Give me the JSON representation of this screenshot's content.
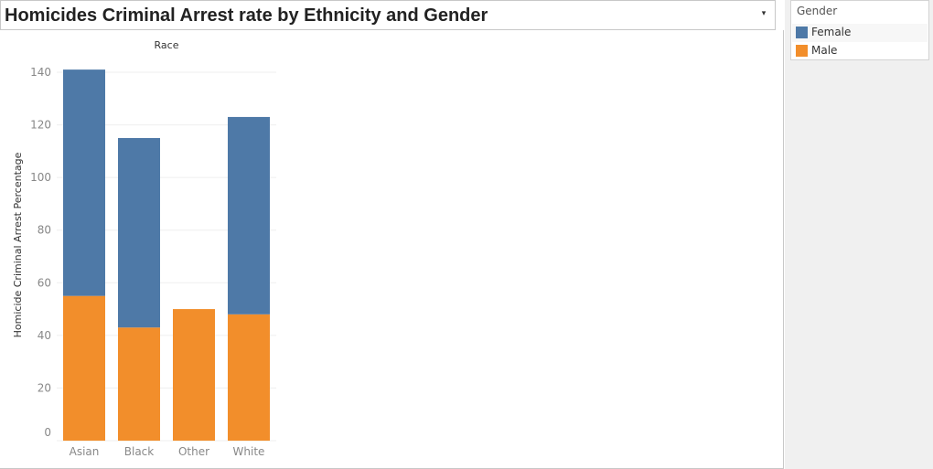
{
  "title": "Homicides Criminal Arrest rate by Ethnicity and Gender",
  "title_dropdown_icon": "▾",
  "legend": {
    "title": "Gender",
    "items": [
      {
        "label": "Female",
        "color": "#4e79a7"
      },
      {
        "label": "Male",
        "color": "#f28e2b"
      }
    ]
  },
  "chart_data": {
    "type": "bar",
    "stacked": true,
    "title": "",
    "column_header": "Race",
    "xlabel": "",
    "ylabel": "Homicide Criminal Arrest Percentage",
    "categories": [
      "Asian",
      "Black",
      "Other",
      "White"
    ],
    "series": [
      {
        "name": "Male",
        "color": "#f28e2b",
        "values": [
          55,
          43,
          50,
          48
        ]
      },
      {
        "name": "Female",
        "color": "#4e79a7",
        "values": [
          86,
          72,
          0,
          75
        ]
      }
    ],
    "ylim": [
      0,
      140
    ],
    "yticks": [
      0,
      20,
      40,
      60,
      80,
      100,
      120,
      140
    ],
    "grid": true,
    "legend_position": "right"
  }
}
